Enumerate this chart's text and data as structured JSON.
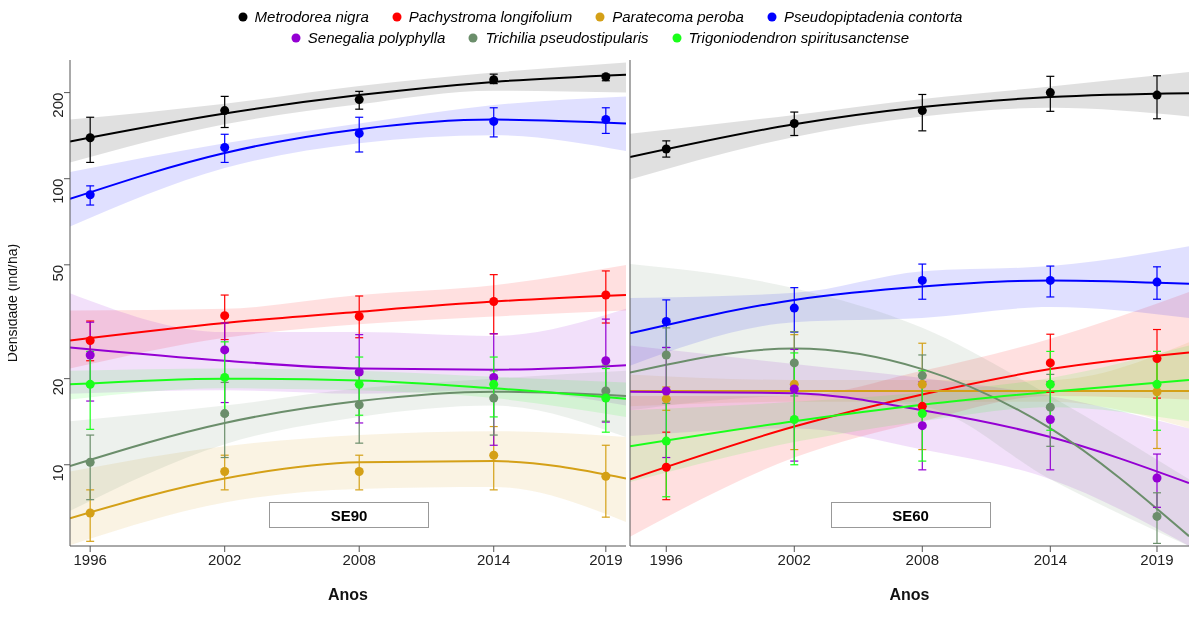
{
  "chart_data": [
    {
      "type": "scatter",
      "xlabel": "Anos",
      "ylabel": "Densidade (ind/ha)",
      "annotations": [
        "SE90"
      ],
      "x": [
        1996,
        2002,
        2008,
        2014,
        2019
      ],
      "xlim": [
        1995.1,
        2019.9
      ],
      "xticks": [
        1996,
        2002,
        2008,
        2014,
        2019
      ],
      "log": "y",
      "ylim": [
        5.2,
        260
      ],
      "yticks": [
        10,
        20,
        50,
        100,
        200
      ],
      "legend": "top",
      "marker": "circle",
      "line_style": "solid",
      "series": [
        {
          "name": "Metrodorea nigra",
          "color": "#000000",
          "values": [
            139,
            173,
            189,
            222,
            227
          ],
          "errors": [
            [
              114,
              164
            ],
            [
              151,
              194
            ],
            [
              175,
              202
            ],
            [
              215,
              232
            ],
            [
              220,
              232
            ]
          ]
        },
        {
          "name": "Pachystroma longifolium",
          "color": "#ff0000",
          "values": [
            27.2,
            33.2,
            33.0,
            37.2,
            39.2
          ],
          "errors": [
            [
              23.1,
              31.8
            ],
            [
              27.4,
              39.2
            ],
            [
              27.8,
              38.9
            ],
            [
              28.7,
              46.2
            ],
            [
              31.3,
              47.6
            ]
          ]
        },
        {
          "name": "Paratecoma peroba",
          "color": "#d4a017",
          "values": [
            6.78,
            9.47,
            9.47,
            10.8,
            9.12
          ],
          "errors": [
            [
              5.4,
              8.17
            ],
            [
              8.17,
              10.8
            ],
            [
              8.17,
              10.8
            ],
            [
              8.17,
              13.6
            ],
            [
              6.56,
              11.7
            ]
          ]
        },
        {
          "name": "Pseudopiptadenia contorta",
          "color": "#0000ff",
          "values": [
            87.9,
            128.5,
            144,
            158.6,
            161
          ],
          "errors": [
            [
              80.9,
              94.4
            ],
            [
              114,
              143
            ],
            [
              124,
              164
            ],
            [
              140,
              177
            ],
            [
              144,
              177
            ]
          ]
        },
        {
          "name": "Senegalia polyphylla",
          "color": "#9400d3",
          "values": [
            24.2,
            25.2,
            21.1,
            20.2,
            23.1
          ],
          "errors": [
            [
              16.7,
              31.5
            ],
            [
              16.5,
              31.3
            ],
            [
              14.0,
              28.5
            ],
            [
              11.7,
              28.7
            ],
            [
              14.1,
              32.3
            ]
          ]
        },
        {
          "name": "Trichilia pseudostipularis",
          "color": "#6b8e6b",
          "values": [
            10.2,
            15.1,
            16.2,
            17.1,
            18.1
          ],
          "errors": [
            [
              7.55,
              12.7
            ],
            [
              10.6,
              19.4
            ],
            [
              11.9,
              20.7
            ],
            [
              12.7,
              21.3
            ],
            [
              14.2,
              22.3
            ]
          ]
        },
        {
          "name": "Trigoniodendron spiritusanctense",
          "color": "#1aff1a",
          "values": [
            19.1,
            20.2,
            19.1,
            19.1,
            17.1
          ],
          "errors": [
            [
              13.3,
              24.9
            ],
            [
              14.9,
              26.9
            ],
            [
              14.9,
              23.8
            ],
            [
              14.7,
              23.8
            ],
            [
              13.0,
              21.7
            ]
          ]
        },
        {
          "type": "line",
          "marker": "none",
          "color": "#000000",
          "x": [
            1995.1,
            2002,
            2008,
            2014,
            2019.9
          ],
          "values": [
            135,
            169,
            196,
            218,
            231
          ],
          "lower": [
            114,
            155,
            182,
            203,
            200
          ],
          "upper": [
            161,
            183,
            211,
            235,
            255
          ]
        },
        {
          "type": "line",
          "marker": "none",
          "color": "#ff0000",
          "x": [
            1995.1,
            2002,
            2008,
            2014,
            2019.9
          ],
          "values": [
            27.2,
            31.3,
            34.3,
            37.2,
            39.2
          ],
          "lower": [
            21.7,
            27.8,
            31.0,
            33.0,
            34.6
          ],
          "upper": [
            34.6,
            35.1,
            39.2,
            42.4,
            49.9
          ]
        },
        {
          "type": "line",
          "marker": "none",
          "color": "#d4a017",
          "x": [
            1995.1,
            2002,
            2008,
            2014,
            2019.9
          ],
          "values": [
            6.5,
            8.96,
            10.2,
            10.3,
            8.96
          ],
          "lower": [
            5.23,
            7.38,
            8.23,
            8.36,
            6.31
          ],
          "upper": [
            9.47,
            11.6,
            12.7,
            13.1,
            12.5
          ]
        },
        {
          "type": "line",
          "marker": "none",
          "color": "#0000ff",
          "x": [
            1995.1,
            2002,
            2008,
            2014,
            2019.9
          ],
          "values": [
            85,
            123,
            149,
            161,
            156
          ],
          "lower": [
            68,
            109,
            133,
            142,
            125
          ],
          "upper": [
            105.6,
            133,
            156,
            181,
            194
          ]
        },
        {
          "type": "line",
          "marker": "none",
          "color": "#9400d3",
          "x": [
            1995.1,
            2002,
            2008,
            2014,
            2019.9
          ],
          "values": [
            25.7,
            23.1,
            21.7,
            21.5,
            22.3
          ],
          "lower": [
            17.7,
            18.2,
            17.7,
            18.2,
            16.1
          ],
          "upper": [
            39.8,
            29.1,
            29.1,
            28.2,
            35.1
          ]
        },
        {
          "type": "line",
          "marker": "none",
          "color": "#6b8e6b",
          "x": [
            1995.1,
            2002,
            2008,
            2014,
            2019.9
          ],
          "values": [
            9.9,
            14.0,
            16.7,
            18.0,
            17.4
          ],
          "lower": [
            6.9,
            11.8,
            14.7,
            16.1,
            12.5
          ],
          "upper": [
            14.2,
            16.1,
            18.5,
            20.0,
            21.3
          ]
        },
        {
          "type": "line",
          "marker": "none",
          "color": "#1aff1a",
          "x": [
            1995.1,
            2002,
            2008,
            2014,
            2019.9
          ],
          "values": [
            19.1,
            20.0,
            19.7,
            18.5,
            17.0
          ],
          "lower": [
            16.9,
            18.5,
            18.2,
            17.1,
            14.7
          ],
          "upper": [
            21.3,
            21.7,
            21.3,
            20.3,
            19.4
          ]
        }
      ]
    },
    {
      "type": "scatter",
      "xlabel": "Anos",
      "annotations": [
        "SE60"
      ],
      "x": [
        1996,
        2002,
        2008,
        2014,
        2019
      ],
      "xlim": [
        1994.3,
        2020.5
      ],
      "xticks": [
        1996,
        2002,
        2008,
        2014,
        2019
      ],
      "log": "y",
      "ylim": [
        5.2,
        260
      ],
      "yticks": [
        10,
        20,
        50,
        100,
        200
      ],
      "tick_labels": "x",
      "marker": "circle",
      "line_style": "solid",
      "series": [
        {
          "color": "#000000",
          "values": [
            127,
            156,
            173,
            200,
            196
          ],
          "errors": [
            [
              119,
              135.6
            ],
            [
              141.6,
              171
            ],
            [
              147,
              197
            ],
            [
              172,
              228
            ],
            [
              162,
              229
            ]
          ]
        },
        {
          "color": "#ff0000",
          "values": [
            9.8,
            null,
            16.0,
            22.7,
            23.5
          ],
          "errors": [
            [
              7.55,
              13.0
            ],
            null,
            null,
            [
              17.9,
              28.6
            ],
            [
              17.1,
              29.7
            ]
          ]
        },
        {
          "color": "#d4a017",
          "values": [
            17.0,
            19.1,
            19.1,
            null,
            18.0
          ],
          "errors": [
            [
              15.5,
              18.7
            ],
            [
              11.3,
              28.5
            ],
            [
              11.3,
              26.6
            ],
            null,
            [
              11.4,
              24.9
            ]
          ]
        },
        {
          "color": "#0000ff",
          "values": [
            31.7,
            35.3,
            44.1,
            44.1,
            43.5
          ],
          "errors": [
            [
              25.7,
              37.7
            ],
            [
              29.1,
              41.6
            ],
            [
              37.9,
              50.3
            ],
            [
              38.6,
              49.5
            ],
            [
              37.9,
              49.2
            ]
          ]
        },
        {
          "color": "#9400d3",
          "values": [
            18.1,
            18.4,
            13.7,
            14.4,
            8.99
          ],
          "errors": [
            [
              10.6,
              25.7
            ],
            [
              10.3,
              25.3
            ],
            [
              9.6,
              19.5
            ],
            [
              9.6,
              19.5
            ],
            [
              7.1,
              10.9
            ]
          ]
        },
        {
          "color": "#6b8e6b",
          "values": [
            24.2,
            22.7,
            20.5,
            15.9,
            6.6
          ],
          "errors": [
            [
              16.4,
              30.1
            ],
            [
              17.4,
              29.2
            ],
            [
              15.1,
              24.2
            ],
            [
              11.6,
              20.7
            ],
            [
              5.31,
              7.98
            ]
          ]
        },
        {
          "color": "#1aff1a",
          "values": [
            12.1,
            14.4,
            15.1,
            19.1,
            19.1
          ],
          "errors": [
            [
              7.73,
              16.9
            ],
            [
              10.0,
              24.6
            ],
            [
              10.3,
              21.3
            ],
            [
              13.2,
              24.9
            ],
            [
              13.2,
              24.9
            ]
          ]
        },
        {
          "type": "line",
          "marker": "none",
          "color": "#000000",
          "x": [
            1994.3,
            2002,
            2008,
            2014,
            2020.5
          ],
          "values": [
            119,
            155,
            178,
            193,
            199
          ],
          "lower": [
            99.3,
            140,
            165,
            177,
            165
          ],
          "upper": [
            143.6,
            167,
            190,
            210,
            236
          ]
        },
        {
          "type": "line",
          "marker": "none",
          "color": "#ff0000",
          "x": [
            1994.3,
            2002,
            2008,
            2014,
            2020.5
          ],
          "values": [
            8.9,
            13.6,
            17.6,
            21.6,
            24.7
          ],
          "lower": [
            5.6,
            10.6,
            14.2,
            17.4,
            16.9
          ],
          "upper": [
            17.4,
            17.4,
            21.3,
            27.6,
            40.2
          ]
        },
        {
          "type": "line",
          "marker": "none",
          "color": "#d4a017",
          "x": [
            1994.3,
            2002,
            2008,
            2014,
            2020.5
          ],
          "values": [
            18.1,
            18.1,
            18.1,
            18.1,
            18.1
          ],
          "lower": [
            16.0,
            16.6,
            16.6,
            16.6,
            13.4
          ],
          "upper": [
            20.7,
            19.8,
            19.8,
            19.8,
            26.8
          ]
        },
        {
          "type": "line",
          "marker": "none",
          "color": "#0000ff",
          "x": [
            1994.3,
            2002,
            2008,
            2014,
            2020.5
          ],
          "values": [
            28.8,
            37.7,
            42.0,
            44.1,
            42.9
          ],
          "lower": [
            22.2,
            31.5,
            32.6,
            35.6,
            32.6
          ],
          "upper": [
            38.3,
            39.9,
            47.5,
            49.5,
            58.1
          ]
        },
        {
          "type": "line",
          "marker": "none",
          "color": "#9400d3",
          "x": [
            1994.3,
            2002,
            2008,
            2014,
            2020.5
          ],
          "values": [
            18.0,
            17.8,
            15.5,
            12.5,
            8.63
          ],
          "lower": [
            12.6,
            13.4,
            11.3,
            8.9,
            5.2
          ],
          "upper": [
            26.1,
            22.5,
            20.1,
            17.4,
            13.4
          ]
        },
        {
          "type": "line",
          "marker": "none",
          "color": "#6b8e6b",
          "x": [
            1994.3,
            2002,
            2008,
            2014,
            2020.5
          ],
          "values": [
            21.0,
            25.5,
            21.6,
            13.4,
            5.63
          ],
          "lower": [
            15.5,
            17.4,
            16.0,
            8.9,
            5.2
          ],
          "upper": [
            50.3,
            41.4,
            30.1,
            17.4,
            8.9
          ]
        },
        {
          "type": "line",
          "marker": "none",
          "color": "#1aff1a",
          "x": [
            1994.3,
            2002,
            2008,
            2014,
            2020.5
          ],
          "values": [
            11.6,
            14.2,
            16.2,
            18.0,
            19.8
          ],
          "lower": [
            8.7,
            12.0,
            14.2,
            15.9,
            14.2
          ],
          "upper": [
            15.5,
            16.6,
            17.9,
            20.1,
            26.1
          ]
        }
      ]
    }
  ]
}
